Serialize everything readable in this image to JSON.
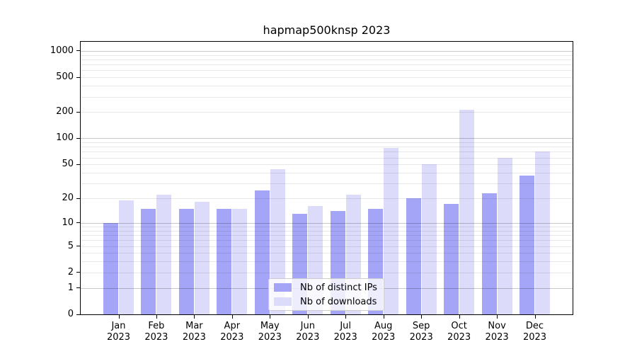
{
  "figure": {
    "title": "hapmap500knsp 2023"
  },
  "chart_data": {
    "type": "bar",
    "title": "hapmap500knsp 2023",
    "categories": [
      "Jan 2023",
      "Feb 2023",
      "Mar 2023",
      "Apr 2023",
      "May 2023",
      "Jun 2023",
      "Jul 2023",
      "Aug 2023",
      "Sep 2023",
      "Oct 2023",
      "Nov 2023",
      "Dec 2023"
    ],
    "series": [
      {
        "name": "Nb of distinct IPs",
        "color": "#a5a5f7",
        "values": [
          10,
          15,
          15,
          15,
          25,
          13,
          14,
          15,
          20,
          17,
          23,
          37
        ]
      },
      {
        "name": "Nb of downloads",
        "color": "#dcdcfa",
        "values": [
          19,
          22,
          18,
          15,
          44,
          16,
          22,
          78,
          50,
          215,
          60,
          70
        ]
      }
    ],
    "xlabel": "",
    "ylabel": "",
    "y_scale": "log1p",
    "y_ticks": [
      0,
      1,
      2,
      5,
      10,
      20,
      50,
      100,
      200,
      500,
      1000
    ],
    "ylim": [
      0,
      1270
    ],
    "grid": "both",
    "legend": {
      "position": "lower center",
      "labels": [
        "Nb of distinct IPs",
        "Nb of downloads"
      ]
    }
  }
}
